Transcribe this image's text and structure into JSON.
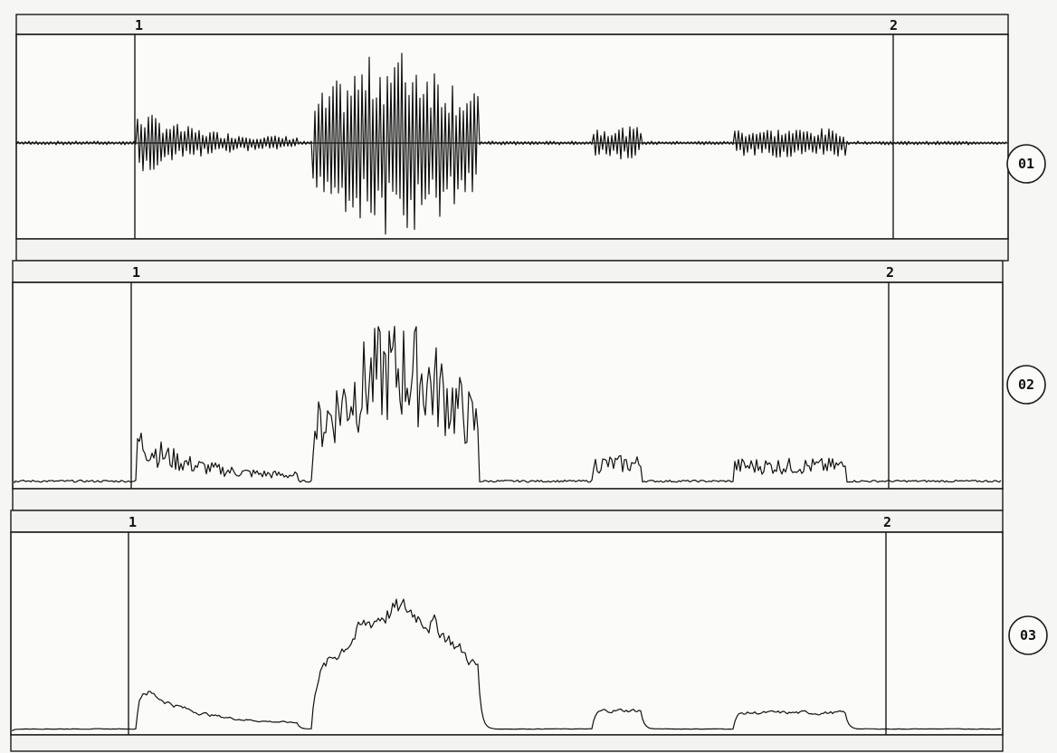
{
  "markers": {
    "start": "1",
    "end": "2"
  },
  "panels": [
    {
      "id": "panel-01",
      "trace_label": "01",
      "trace_kind": "waveform"
    },
    {
      "id": "panel-02",
      "trace_label": "02",
      "trace_kind": "envelope"
    },
    {
      "id": "panel-03",
      "trace_label": "03",
      "trace_kind": "smoothed-envelope"
    }
  ],
  "colors": {
    "ink": "#111111",
    "paper": "#fbfbf9"
  }
}
